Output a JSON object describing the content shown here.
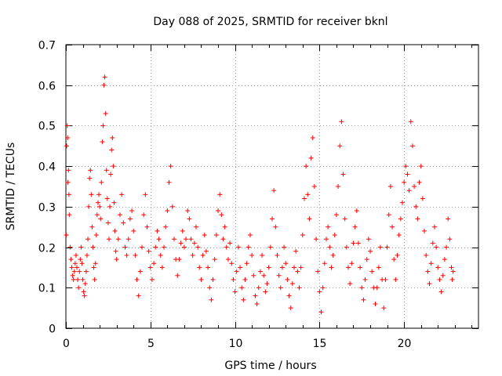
{
  "chart_data": {
    "type": "scatter",
    "title": "Day 088 of 2025, SRMTID for receiver bknl",
    "xlabel": "GPS time / hours",
    "ylabel": "SRMTID / TECUs",
    "xlim": [
      0,
      24.4
    ],
    "ylim": [
      0,
      0.7
    ],
    "xticks": [
      0,
      5,
      10,
      15,
      20
    ],
    "yticks": [
      0,
      0.1,
      0.2,
      0.3,
      0.4,
      0.5,
      0.6,
      0.7
    ],
    "xtick_labels": [
      "0",
      "5",
      "10",
      "15",
      "20"
    ],
    "ytick_labels": [
      "0",
      "0.1",
      "0.2",
      "0.3",
      "0.4",
      "0.5",
      "0.6",
      "0.7"
    ],
    "grid": true,
    "marker": "plus",
    "color": "#ff0000",
    "series": [
      {
        "name": "SRMTID",
        "points": [
          [
            0.02,
            0.23
          ],
          [
            0.05,
            0.45
          ],
          [
            0.08,
            0.5
          ],
          [
            0.1,
            0.47
          ],
          [
            0.12,
            0.36
          ],
          [
            0.15,
            0.39
          ],
          [
            0.18,
            0.33
          ],
          [
            0.2,
            0.28
          ],
          [
            0.25,
            0.2
          ],
          [
            0.3,
            0.17
          ],
          [
            0.35,
            0.15
          ],
          [
            0.4,
            0.13
          ],
          [
            0.45,
            0.12
          ],
          [
            0.5,
            0.14
          ],
          [
            0.55,
            0.16
          ],
          [
            0.6,
            0.18
          ],
          [
            0.65,
            0.15
          ],
          [
            0.7,
            0.12
          ],
          [
            0.75,
            0.1
          ],
          [
            0.8,
            0.14
          ],
          [
            0.85,
            0.17
          ],
          [
            0.9,
            0.2
          ],
          [
            0.95,
            0.16
          ],
          [
            1.0,
            0.12
          ],
          [
            1.05,
            0.09
          ],
          [
            1.1,
            0.08
          ],
          [
            1.15,
            0.11
          ],
          [
            1.2,
            0.14
          ],
          [
            1.25,
            0.18
          ],
          [
            1.3,
            0.22
          ],
          [
            1.35,
            0.3
          ],
          [
            1.4,
            0.37
          ],
          [
            1.45,
            0.39
          ],
          [
            1.5,
            0.33
          ],
          [
            1.55,
            0.25
          ],
          [
            1.6,
            0.2
          ],
          [
            1.65,
            0.15
          ],
          [
            1.7,
            0.12
          ],
          [
            1.75,
            0.16
          ],
          [
            1.8,
            0.23
          ],
          [
            1.85,
            0.28
          ],
          [
            1.9,
            0.31
          ],
          [
            1.95,
            0.33
          ],
          [
            2.0,
            0.3
          ],
          [
            2.05,
            0.27
          ],
          [
            2.1,
            0.36
          ],
          [
            2.15,
            0.46
          ],
          [
            2.2,
            0.5
          ],
          [
            2.25,
            0.6
          ],
          [
            2.3,
            0.62
          ],
          [
            2.35,
            0.53
          ],
          [
            2.4,
            0.39
          ],
          [
            2.45,
            0.32
          ],
          [
            2.5,
            0.26
          ],
          [
            2.55,
            0.22
          ],
          [
            2.6,
            0.3
          ],
          [
            2.65,
            0.38
          ],
          [
            2.7,
            0.44
          ],
          [
            2.75,
            0.47
          ],
          [
            2.8,
            0.4
          ],
          [
            2.85,
            0.31
          ],
          [
            2.9,
            0.24
          ],
          [
            2.95,
            0.19
          ],
          [
            3.0,
            0.17
          ],
          [
            3.1,
            0.22
          ],
          [
            3.2,
            0.28
          ],
          [
            3.3,
            0.33
          ],
          [
            3.4,
            0.26
          ],
          [
            3.5,
            0.2
          ],
          [
            3.6,
            0.18
          ],
          [
            3.7,
            0.22
          ],
          [
            3.8,
            0.27
          ],
          [
            3.9,
            0.29
          ],
          [
            4.0,
            0.24
          ],
          [
            4.1,
            0.18
          ],
          [
            4.2,
            0.12
          ],
          [
            4.3,
            0.08
          ],
          [
            4.4,
            0.14
          ],
          [
            4.5,
            0.2
          ],
          [
            4.6,
            0.28
          ],
          [
            4.7,
            0.33
          ],
          [
            4.8,
            0.25
          ],
          [
            4.9,
            0.19
          ],
          [
            5.0,
            0.15
          ],
          [
            5.1,
            0.12
          ],
          [
            5.2,
            0.16
          ],
          [
            5.3,
            0.2
          ],
          [
            5.4,
            0.24
          ],
          [
            5.5,
            0.22
          ],
          [
            5.6,
            0.18
          ],
          [
            5.7,
            0.15
          ],
          [
            5.8,
            0.2
          ],
          [
            5.9,
            0.25
          ],
          [
            6.0,
            0.29
          ],
          [
            6.1,
            0.36
          ],
          [
            6.2,
            0.4
          ],
          [
            6.3,
            0.3
          ],
          [
            6.4,
            0.22
          ],
          [
            6.5,
            0.17
          ],
          [
            6.6,
            0.13
          ],
          [
            6.7,
            0.17
          ],
          [
            6.8,
            0.21
          ],
          [
            6.9,
            0.24
          ],
          [
            7.0,
            0.2
          ],
          [
            7.1,
            0.22
          ],
          [
            7.2,
            0.29
          ],
          [
            7.3,
            0.27
          ],
          [
            7.4,
            0.22
          ],
          [
            7.5,
            0.18
          ],
          [
            7.6,
            0.21
          ],
          [
            7.7,
            0.25
          ],
          [
            7.8,
            0.2
          ],
          [
            7.9,
            0.15
          ],
          [
            8.0,
            0.12
          ],
          [
            8.1,
            0.18
          ],
          [
            8.2,
            0.23
          ],
          [
            8.3,
            0.19
          ],
          [
            8.4,
            0.15
          ],
          [
            8.5,
            0.1
          ],
          [
            8.6,
            0.07
          ],
          [
            8.7,
            0.12
          ],
          [
            8.8,
            0.17
          ],
          [
            8.9,
            0.23
          ],
          [
            9.0,
            0.29
          ],
          [
            9.1,
            0.33
          ],
          [
            9.2,
            0.28
          ],
          [
            9.3,
            0.22
          ],
          [
            9.4,
            0.25
          ],
          [
            9.5,
            0.2
          ],
          [
            9.6,
            0.17
          ],
          [
            9.7,
            0.21
          ],
          [
            9.8,
            0.16
          ],
          [
            9.9,
            0.12
          ],
          [
            10.0,
            0.09
          ],
          [
            10.1,
            0.14
          ],
          [
            10.2,
            0.2
          ],
          [
            10.3,
            0.15
          ],
          [
            10.4,
            0.1
          ],
          [
            10.5,
            0.07
          ],
          [
            10.6,
            0.12
          ],
          [
            10.7,
            0.16
          ],
          [
            10.8,
            0.2
          ],
          [
            10.9,
            0.23
          ],
          [
            11.0,
            0.18
          ],
          [
            11.1,
            0.13
          ],
          [
            11.2,
            0.08
          ],
          [
            11.3,
            0.06
          ],
          [
            11.4,
            0.1
          ],
          [
            11.5,
            0.14
          ],
          [
            11.6,
            0.18
          ],
          [
            11.7,
            0.13
          ],
          [
            11.8,
            0.09
          ],
          [
            11.9,
            0.11
          ],
          [
            12.0,
            0.15
          ],
          [
            12.1,
            0.2
          ],
          [
            12.2,
            0.27
          ],
          [
            12.3,
            0.34
          ],
          [
            12.4,
            0.25
          ],
          [
            12.5,
            0.18
          ],
          [
            12.6,
            0.13
          ],
          [
            12.7,
            0.1
          ],
          [
            12.8,
            0.15
          ],
          [
            12.9,
            0.2
          ],
          [
            13.0,
            0.16
          ],
          [
            13.1,
            0.12
          ],
          [
            13.2,
            0.08
          ],
          [
            13.3,
            0.05
          ],
          [
            13.4,
            0.11
          ],
          [
            13.5,
            0.15
          ],
          [
            13.6,
            0.19
          ],
          [
            13.7,
            0.14
          ],
          [
            13.8,
            0.1
          ],
          [
            13.9,
            0.15
          ],
          [
            14.0,
            0.23
          ],
          [
            14.1,
            0.32
          ],
          [
            14.2,
            0.4
          ],
          [
            14.3,
            0.33
          ],
          [
            14.4,
            0.27
          ],
          [
            14.5,
            0.42
          ],
          [
            14.6,
            0.47
          ],
          [
            14.7,
            0.35
          ],
          [
            14.8,
            0.22
          ],
          [
            14.9,
            0.14
          ],
          [
            15.0,
            0.09
          ],
          [
            15.1,
            0.04
          ],
          [
            15.2,
            0.1
          ],
          [
            15.3,
            0.16
          ],
          [
            15.4,
            0.22
          ],
          [
            15.5,
            0.25
          ],
          [
            15.6,
            0.2
          ],
          [
            15.7,
            0.15
          ],
          [
            15.8,
            0.18
          ],
          [
            15.9,
            0.23
          ],
          [
            16.0,
            0.28
          ],
          [
            16.1,
            0.35
          ],
          [
            16.2,
            0.45
          ],
          [
            16.3,
            0.51
          ],
          [
            16.4,
            0.38
          ],
          [
            16.5,
            0.27
          ],
          [
            16.6,
            0.2
          ],
          [
            16.7,
            0.15
          ],
          [
            16.8,
            0.11
          ],
          [
            16.9,
            0.16
          ],
          [
            17.0,
            0.21
          ],
          [
            17.1,
            0.25
          ],
          [
            17.2,
            0.29
          ],
          [
            17.3,
            0.21
          ],
          [
            17.4,
            0.15
          ],
          [
            17.5,
            0.1
          ],
          [
            17.6,
            0.07
          ],
          [
            17.7,
            0.12
          ],
          [
            17.8,
            0.17
          ],
          [
            17.9,
            0.22
          ],
          [
            18.0,
            0.19
          ],
          [
            18.1,
            0.14
          ],
          [
            18.2,
            0.1
          ],
          [
            18.3,
            0.06
          ],
          [
            18.4,
            0.1
          ],
          [
            18.5,
            0.15
          ],
          [
            18.6,
            0.2
          ],
          [
            18.7,
            0.12
          ],
          [
            18.8,
            0.05
          ],
          [
            18.9,
            0.12
          ],
          [
            19.0,
            0.2
          ],
          [
            19.1,
            0.28
          ],
          [
            19.2,
            0.35
          ],
          [
            19.3,
            0.25
          ],
          [
            19.4,
            0.17
          ],
          [
            19.5,
            0.12
          ],
          [
            19.6,
            0.18
          ],
          [
            19.7,
            0.23
          ],
          [
            19.8,
            0.27
          ],
          [
            19.9,
            0.31
          ],
          [
            20.0,
            0.36
          ],
          [
            20.1,
            0.4
          ],
          [
            20.2,
            0.38
          ],
          [
            20.3,
            0.34
          ],
          [
            20.4,
            0.51
          ],
          [
            20.5,
            0.45
          ],
          [
            20.6,
            0.35
          ],
          [
            20.7,
            0.3
          ],
          [
            20.8,
            0.27
          ],
          [
            20.9,
            0.36
          ],
          [
            21.0,
            0.4
          ],
          [
            21.1,
            0.32
          ],
          [
            21.2,
            0.24
          ],
          [
            21.3,
            0.18
          ],
          [
            21.4,
            0.14
          ],
          [
            21.5,
            0.11
          ],
          [
            21.6,
            0.16
          ],
          [
            21.7,
            0.21
          ],
          [
            21.8,
            0.25
          ],
          [
            21.9,
            0.2
          ],
          [
            22.0,
            0.15
          ],
          [
            22.1,
            0.12
          ],
          [
            22.2,
            0.09
          ],
          [
            22.3,
            0.13
          ],
          [
            22.4,
            0.17
          ],
          [
            22.5,
            0.2
          ],
          [
            22.6,
            0.27
          ],
          [
            22.7,
            0.22
          ],
          [
            22.8,
            0.15
          ],
          [
            22.85,
            0.12
          ],
          [
            22.9,
            0.14
          ]
        ]
      }
    ]
  }
}
